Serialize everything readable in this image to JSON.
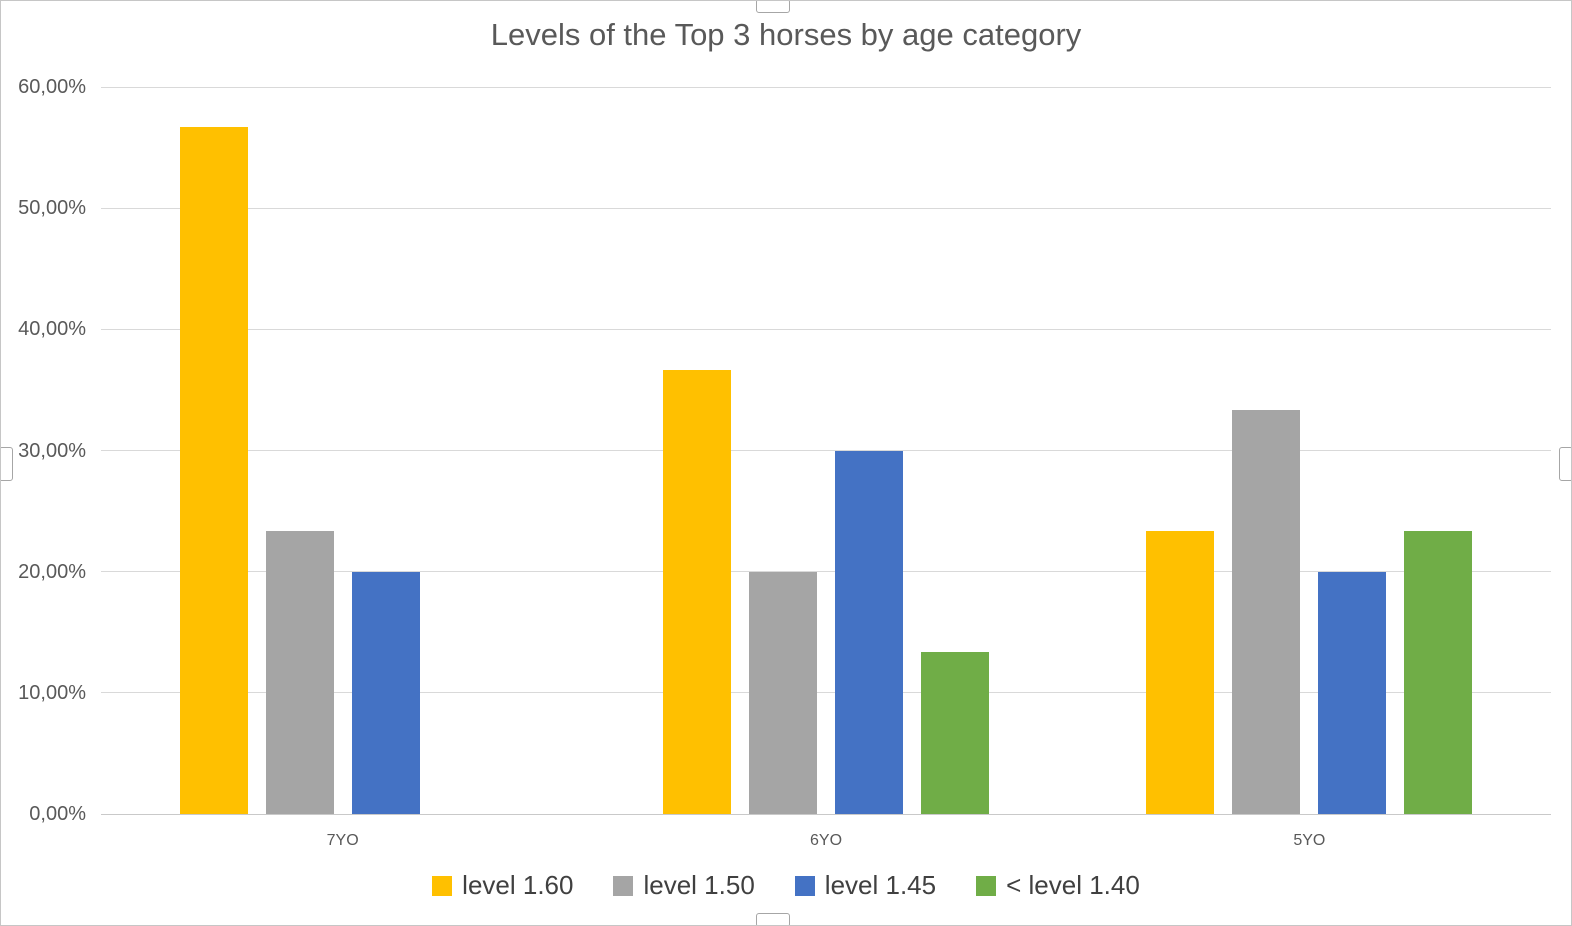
{
  "chart_data": {
    "type": "bar",
    "title": "Levels of the Top 3 horses by age category",
    "categories": [
      "7YO",
      "6YO",
      "5YO"
    ],
    "series": [
      {
        "name": "level 1.60",
        "color": "#FFC000",
        "values": [
          56.67,
          36.67,
          23.33
        ]
      },
      {
        "name": "level 1.50",
        "color": "#A5A5A5",
        "values": [
          23.33,
          20.0,
          33.33
        ]
      },
      {
        "name": "level 1.45",
        "color": "#4472C4",
        "values": [
          20.0,
          30.0,
          20.0
        ]
      },
      {
        "name": "< level 1.40",
        "color": "#70AD47",
        "values": [
          0,
          13.33,
          23.33
        ]
      }
    ],
    "y_axis": {
      "min": 0,
      "max": 60,
      "tick_step": 10,
      "tick_labels": [
        "0,00%",
        "10,00%",
        "20,00%",
        "30,00%",
        "40,00%",
        "50,00%",
        "60,00%"
      ],
      "number_format": "0,00%"
    },
    "x_axis": {
      "labels": [
        "7YO",
        "6YO",
        "5YO"
      ]
    },
    "legend": {
      "position": "bottom",
      "entries": [
        "level 1.60",
        "level 1.50",
        "level 1.45",
        "< level 1.40"
      ]
    },
    "grid": true,
    "ylim": [
      0,
      60
    ]
  },
  "colors": {
    "series_level_160": "#FFC000",
    "series_level_150": "#A5A5A5",
    "series_level_145": "#4472C4",
    "series_lt_level_140": "#70AD47",
    "gridline": "#D9D9D9",
    "axis_line": "#C9C9C9",
    "title_text": "#595959",
    "tick_text": "#595959",
    "legend_text": "#404040",
    "chart_border": "#C6C6C6"
  }
}
